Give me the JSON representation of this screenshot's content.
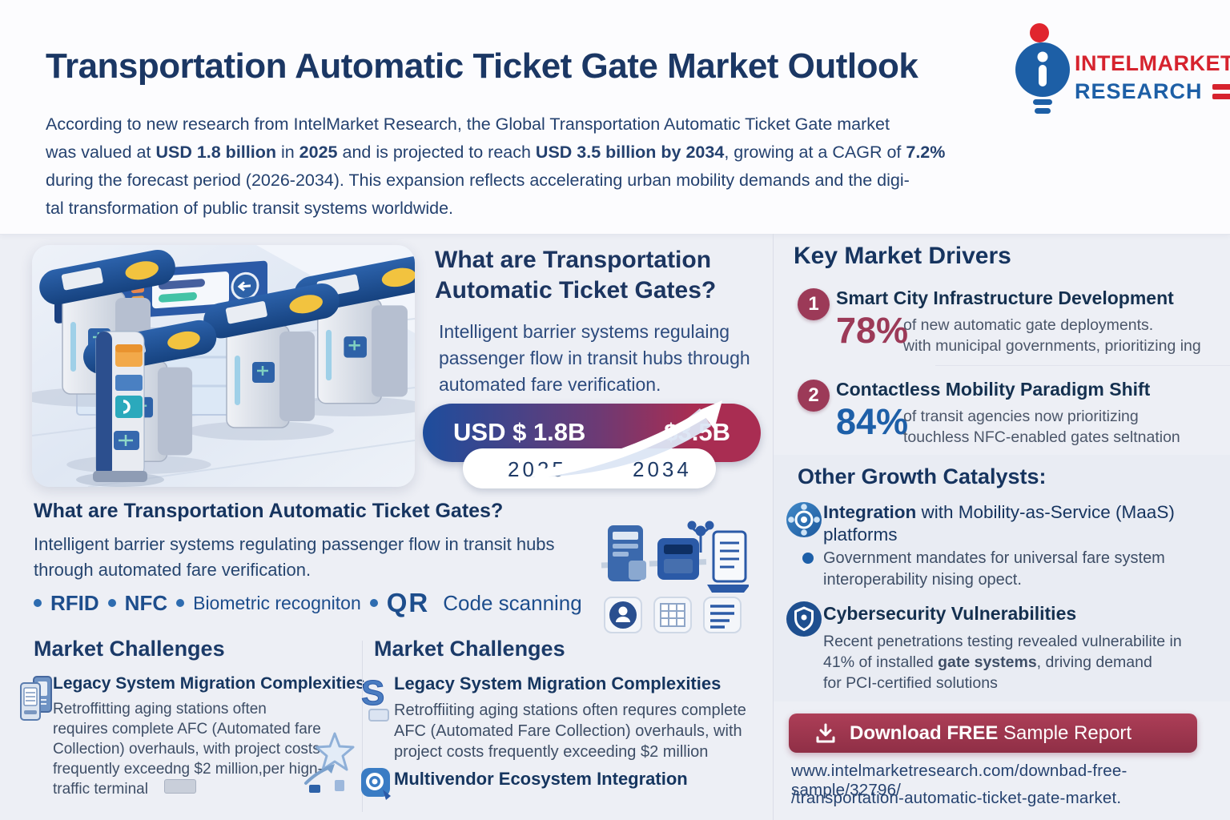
{
  "theme": {
    "navy": "#1b3764",
    "heading": "#16345f",
    "body": "#2a4874",
    "muted": "#44516a",
    "maroon": "#9c3a58",
    "blue": "#1d5fa8",
    "red": "#d6232e",
    "badgeBlue": "#1d4d9d",
    "badgeRed": "#a92d52",
    "button1": "#ad3e57",
    "button2": "#8f2f46",
    "headerBg": "#fcfcfe",
    "mainBg": "#edeff5",
    "panelBand": "#e9ecf3",
    "divider": "#dadde7"
  },
  "header": {
    "title": "Transportation Automatic Ticket Gate Market Outlook",
    "logo": {
      "line1": "INTELMARKET",
      "line2": "RESEARCH"
    },
    "intro_segments": [
      {
        "t": "According to new research from IntelMarket Research, the Global Transportation Automatic Ticket Gate market"
      },
      {
        "br": true
      },
      {
        "t": "was valued at "
      },
      {
        "t": "USD 1.8 billion",
        "b": true
      },
      {
        "t": " in "
      },
      {
        "t": "2025",
        "b": true
      },
      {
        "t": " and is projected to reach "
      },
      {
        "t": "USD 3.5 billion by 2034",
        "b": true
      },
      {
        "t": ", growing at a CAGR of "
      },
      {
        "t": "7.2%",
        "b": true
      },
      {
        "br": true
      },
      {
        "t": "during the forecast period (2026-2034). This expansion reflects accelerating urban mobility demands and the digi-"
      },
      {
        "br": true
      },
      {
        "t": "tal transformation of public transit systems worldwide."
      }
    ]
  },
  "gate_overview_top": {
    "heading_segments": [
      {
        "t": "What are Transportation"
      },
      {
        "br": true
      },
      {
        "t": "Automatic Ticket Gates?"
      }
    ],
    "body_segments": [
      {
        "t": "Intelligent barrier systems regulaing"
      },
      {
        "br": true
      },
      {
        "t": "passenger flow in transit hubs through"
      },
      {
        "br": true
      },
      {
        "t": "automated fare verification."
      }
    ]
  },
  "growth_badge": {
    "from_label": "USD $ 1.8B",
    "from_year": "2025",
    "to_label": "$3.5B",
    "to_year": "2034"
  },
  "gate_overview_bottom": {
    "heading": "What are Transportation Automatic Ticket Gates?",
    "body_segments": [
      {
        "t": "Intelligent barrier systems regulating passenger flow in transit hubs"
      },
      {
        "br": true
      },
      {
        "t": "through automated fare verification."
      }
    ],
    "tags": {
      "rfid": "RFID",
      "nfc": "NFC",
      "biometric": "Biometric recogniton",
      "qr_prefix": "QR",
      "qr_rest": "Code scanning"
    }
  },
  "market_challenges_left": {
    "heading": "Market Challenges",
    "item_title": "Legacy System Migration Complexities",
    "item_body_segments": [
      {
        "t": "Retroffitting aging stations often"
      },
      {
        "br": true
      },
      {
        "t": "requires complete AFC (Automated fare"
      },
      {
        "br": true
      },
      {
        "t": "Collection)  overhauls, with project costs"
      },
      {
        "br": true
      },
      {
        "t": "frequently exceedng $2 million,per hign-"
      },
      {
        "br": true
      },
      {
        "t": "traffic terminal"
      }
    ]
  },
  "market_challenges_mid": {
    "heading": "Market Challenges",
    "item1_title": "Legacy System Migration Complexities",
    "item1_body_segments": [
      {
        "t": "Retroffiiting aging stations often requres complete"
      },
      {
        "br": true
      },
      {
        "t": "AFC (Automated Fare Collection) overhauls, with"
      },
      {
        "br": true
      },
      {
        "t": "project costs frequently exceeding $2 million"
      }
    ],
    "item2_title": "Multivendor Ecosystem Integration"
  },
  "key_market_drivers": {
    "heading": "Key Market Drivers",
    "items": [
      {
        "num": "1",
        "title": "Smart City Infrastructure Development",
        "stat": "78%",
        "stat_color": "#9c3a58",
        "body_segments": [
          {
            "t": "of new automatic gate deployments."
          },
          {
            "br": true
          },
          {
            "t": "with municipal governments, prioritizing ing"
          }
        ]
      },
      {
        "num": "2",
        "title": "Contactless Mobility Paradigm Shift",
        "stat": "84%",
        "stat_color": "#1d5fa8",
        "body_segments": [
          {
            "t": "of transit agencies now prioritizing"
          },
          {
            "br": true
          },
          {
            "t": "touchless NFC-enabled gates seltnation"
          }
        ]
      }
    ]
  },
  "growth_catalysts": {
    "heading": "Other Growth Catalysts:",
    "item1_title_segments": [
      {
        "t": "Integration",
        "b": true
      },
      {
        "t": " with Mobility-as-Service (MaaS)"
      },
      {
        "br": true
      },
      {
        "t": "platforms"
      }
    ],
    "item1_bullet_segments": [
      {
        "t": "Government mandates for universal fare system"
      },
      {
        "br": true
      },
      {
        "t": "interoperability nising opect."
      }
    ],
    "item2_title": "Cybersecurity Vulnerabilities",
    "item2_body_segments": [
      {
        "t": "Recent penetrations testing revealed vulnerabilite in"
      },
      {
        "br": true
      },
      {
        "t": "41% of installed "
      },
      {
        "t": "gate systems",
        "b": true
      },
      {
        "t": ", driving demand"
      },
      {
        "br": true
      },
      {
        "t": "for PCI-certified solutions"
      }
    ]
  },
  "download": {
    "button_segments": [
      {
        "t": "Download FREE",
        "b": true
      },
      {
        "t": " Sample Report"
      }
    ],
    "url_line1": "www.intelmarketresearch.com/downbad-free-sample/32796/",
    "url_line2": "/transportation-automatic-ticket-gate-market."
  }
}
